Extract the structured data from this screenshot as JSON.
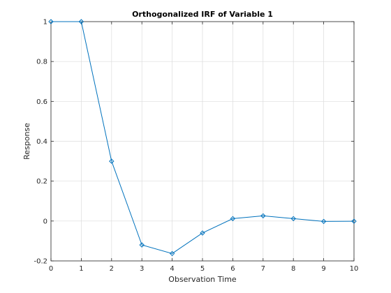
{
  "chart_data": {
    "type": "line",
    "title": "Orthogonalized IRF of Variable 1",
    "xlabel": "Observation Time",
    "ylabel": "Response",
    "xlim": [
      0,
      10
    ],
    "ylim": [
      -0.2,
      1
    ],
    "xticks": [
      0,
      1,
      2,
      3,
      4,
      5,
      6,
      7,
      8,
      9,
      10
    ],
    "xtick_labels": [
      "0",
      "1",
      "2",
      "3",
      "4",
      "5",
      "6",
      "7",
      "8",
      "9",
      "10"
    ],
    "yticks": [
      -0.2,
      0,
      0.2,
      0.4,
      0.6,
      0.8,
      1
    ],
    "ytick_labels": [
      "-0.2",
      "0",
      "0.2",
      "0.4",
      "0.6",
      "0.8",
      "1"
    ],
    "grid": true,
    "marker": "diamond",
    "series": [
      {
        "x": [
          0,
          1,
          2,
          3,
          4,
          5,
          6,
          7,
          8,
          9,
          10
        ],
        "values": [
          1.0,
          1.0,
          0.3,
          -0.12,
          -0.163,
          -0.06,
          0.012,
          0.026,
          0.012,
          -0.002,
          -0.001
        ]
      }
    ],
    "colors": {
      "line": "#0072bd",
      "grid": "#dcdcdc",
      "axes": "#262626"
    }
  }
}
